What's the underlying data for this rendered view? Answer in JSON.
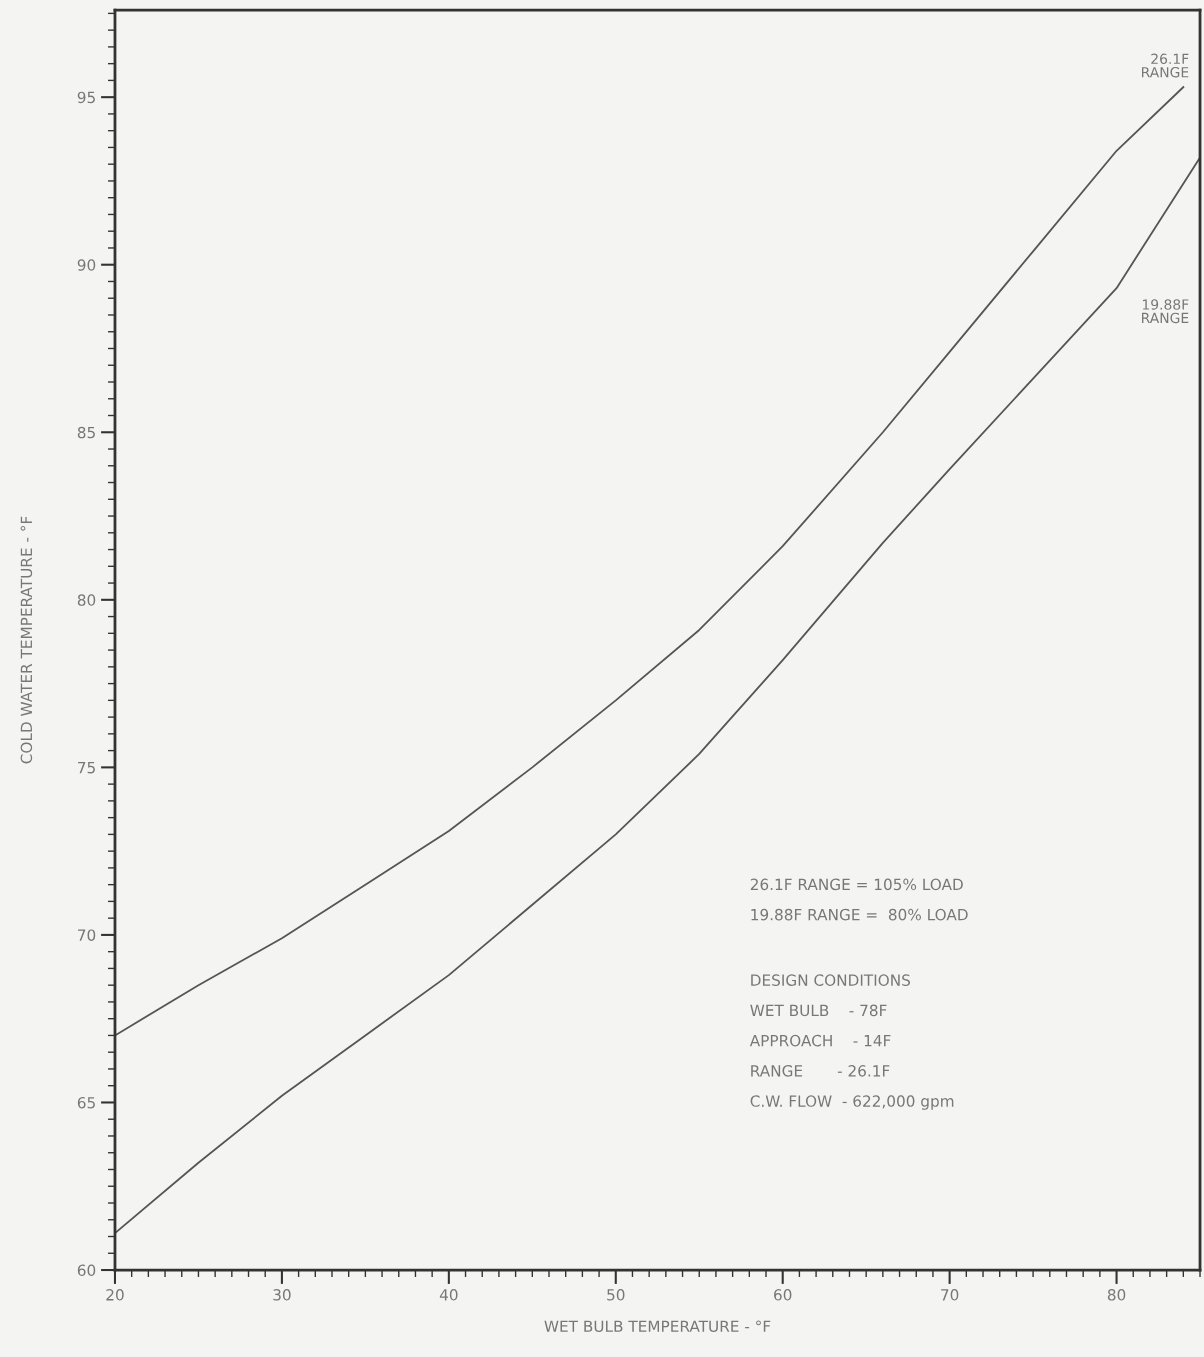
{
  "chart_data": {
    "type": "line",
    "xlabel": "WET BULB TEMPERATURE - °F",
    "ylabel": "COLD WATER TEMPERATURE - °F",
    "xlim": [
      20,
      85
    ],
    "ylim": [
      60,
      97.6
    ],
    "xticks": [
      20,
      30,
      40,
      50,
      60,
      70,
      80
    ],
    "yticks": [
      60,
      65,
      70,
      75,
      80,
      85,
      90,
      95
    ],
    "grid": false,
    "marker": "none",
    "line_style": "solid",
    "series": [
      {
        "color": "#555555",
        "x": [
          20,
          25,
          30,
          35,
          40,
          45,
          50,
          55,
          60,
          66,
          70,
          75,
          80,
          84
        ],
        "values": [
          67.0,
          68.5,
          69.9,
          71.5,
          73.1,
          75.0,
          77.0,
          79.1,
          81.6,
          85.0,
          87.4,
          90.4,
          93.4,
          95.3
        ]
      },
      {
        "color": "#555555",
        "x": [
          20,
          25,
          30,
          35,
          40,
          45,
          50,
          55,
          60,
          66,
          70,
          75,
          80,
          85
        ],
        "values": [
          61.1,
          63.2,
          65.2,
          67.0,
          68.8,
          70.9,
          73.0,
          75.4,
          78.2,
          81.7,
          83.9,
          86.6,
          89.3,
          93.2
        ]
      }
    ],
    "annotations": [
      "26.1F\nRANGE",
      "19.88F\nRANGE",
      "26.1F RANGE = 105% LOAD",
      "19.88F RANGE =  80% LOAD",
      "DESIGN CONDITIONS",
      "WET BULB    - 78F",
      "APPROACH    - 14F",
      "RANGE       - 26.1F",
      "C.W. FLOW  - 622,000 gpm"
    ]
  }
}
